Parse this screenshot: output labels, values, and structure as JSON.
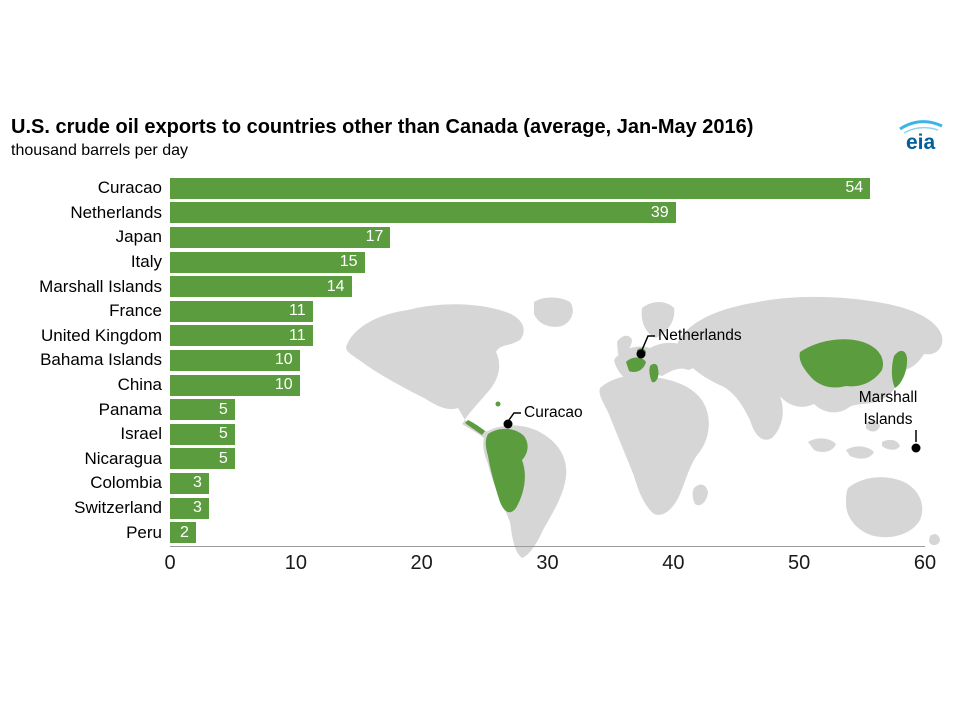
{
  "header": {
    "title": "U.S. crude oil exports to countries other than Canada (average, Jan-May 2016)",
    "subtitle": "thousand barrels per day"
  },
  "logo": {
    "text": "eia",
    "text_color": "#00609f",
    "swoosh_color": "#3ab5e6"
  },
  "chart_data": {
    "type": "bar",
    "orientation": "horizontal",
    "title": "U.S. crude oil exports to countries other than Canada (average, Jan-May 2016)",
    "units": "thousand barrels per day",
    "categories": [
      "Curacao",
      "Netherlands",
      "Japan",
      "Italy",
      "Marshall Islands",
      "France",
      "United Kingdom",
      "Bahama Islands",
      "China",
      "Panama",
      "Israel",
      "Nicaragua",
      "Colombia",
      "Switzerland",
      "Peru"
    ],
    "values": [
      54,
      39,
      17,
      15,
      14,
      11,
      11,
      10,
      10,
      5,
      5,
      5,
      3,
      3,
      2
    ],
    "xlim": [
      0,
      60
    ],
    "xticks": [
      0,
      10,
      20,
      30,
      40,
      50,
      60
    ],
    "bar_color": "#5b9c3f",
    "value_label_color": "#ffffff",
    "grid": false,
    "legend": "none"
  },
  "map": {
    "labels": {
      "netherlands": "Netherlands",
      "curacao": "Curacao",
      "marshall_line1": "Marshall",
      "marshall_line2": "Islands"
    },
    "land_color": "#d6d6d6",
    "highlight_color": "#5b9c3f",
    "marker_color": "#000000"
  }
}
